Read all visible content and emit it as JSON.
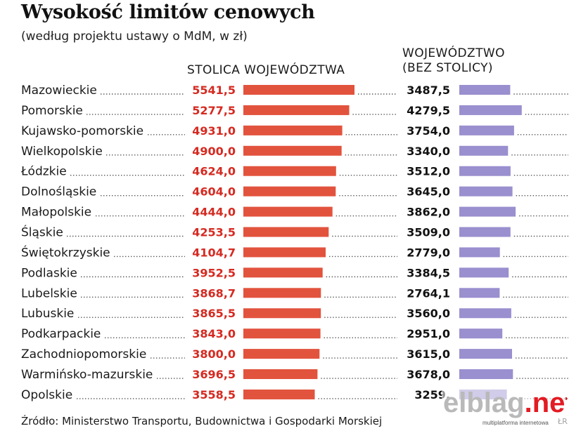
{
  "header": {
    "title": "Wysokość limitów cenowych",
    "subtitle": "(według projektu ustawy o MdM, w zł)",
    "col_capital": "STOLICA WOJEWÓDZTWA",
    "col_region_line1": "WOJEWÓDZTWO",
    "col_region_line2": "(BEZ STOLICY)"
  },
  "footer": {
    "source": "Źródło: Ministerstwo Transportu, Budownictwa i Gospodarki Morskiej",
    "initials": "ŁR"
  },
  "watermark": {
    "brand_text": "elblag.net",
    "tagline": "multiplatforma internetowa"
  },
  "colors": {
    "capital_bar": "#e2533d",
    "capital_value": "#d52a21",
    "region_bar": "#9a8fcf",
    "region_value": "#111111"
  },
  "chart_data": {
    "type": "bar",
    "categories": [
      "Mazowieckie",
      "Pomorskie",
      "Kujawsko-pomorskie",
      "Wielkopolskie",
      "Łódzkie",
      "Dolnośląskie",
      "Małopolskie",
      "Śląskie",
      "Świętokrzyskie",
      "Podlaskie",
      "Lubelskie",
      "Lubuskie",
      "Podkarpackie",
      "Zachodniopomorskie",
      "Warmińsko-mazurskie",
      "Opolskie"
    ],
    "series": [
      {
        "name": "STOLICA WOJEWÓDZTWA",
        "values": [
          5541.5,
          5277.5,
          4931.0,
          4900.0,
          4624.0,
          4604.0,
          4444.0,
          4253.5,
          4104.7,
          3952.5,
          3868.7,
          3865.5,
          3843.0,
          3800.0,
          3696.5,
          3558.5
        ],
        "labels": [
          "5541,5",
          "5277,5",
          "4931,0",
          "4900,0",
          "4624,0",
          "4604,0",
          "4444,0",
          "4253,5",
          "4104,7",
          "3952,5",
          "3868,7",
          "3865,5",
          "3843,0",
          "3800,0",
          "3696,5",
          "3558,5"
        ]
      },
      {
        "name": "WOJEWÓDZTWO (BEZ STOLICY)",
        "values": [
          3487.5,
          4279.5,
          3754.0,
          3340.0,
          3512.0,
          3645.0,
          3862.0,
          3509.0,
          2779.0,
          3384.5,
          2764.1,
          3560.0,
          2951.0,
          3615.0,
          3678.0,
          3259.0
        ],
        "labels": [
          "3487,5",
          "4279,5",
          "3754,0",
          "3340,0",
          "3512,0",
          "3645,0",
          "3862,0",
          "3509,0",
          "2779,0",
          "3384,5",
          "2764,1",
          "3560,0",
          "2951,0",
          "3615,0",
          "3678,0",
          "3259,"
        ]
      }
    ],
    "xlim": [
      0,
      5541.5
    ],
    "grid": false,
    "legend": "column headers"
  }
}
